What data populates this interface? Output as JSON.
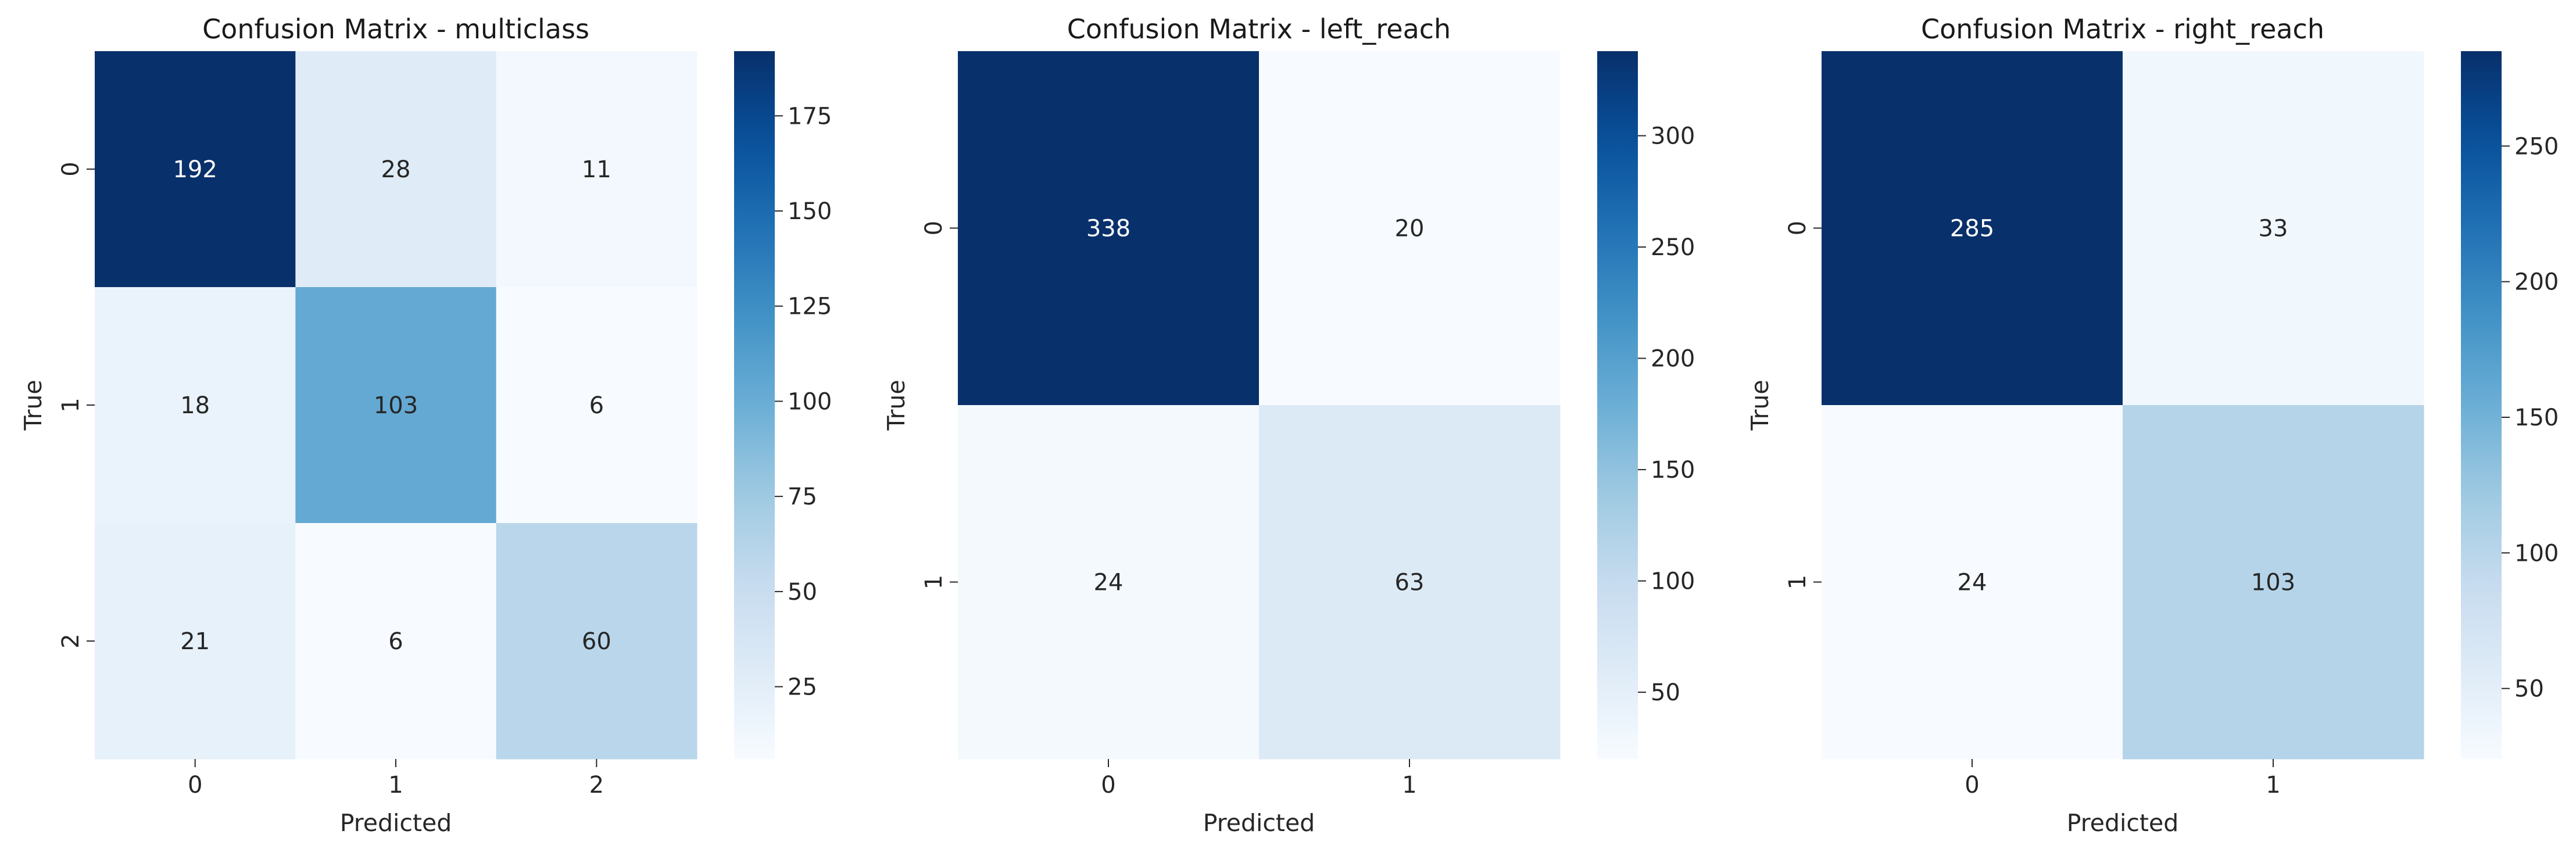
{
  "chart_data": [
    {
      "type": "heatmap",
      "title": "Confusion Matrix - multiclass",
      "xlabel": "Predicted",
      "ylabel": "True",
      "x_categories": [
        "0",
        "1",
        "2"
      ],
      "y_categories": [
        "0",
        "1",
        "2"
      ],
      "values": [
        [
          192,
          28,
          11
        ],
        [
          18,
          103,
          6
        ],
        [
          21,
          6,
          60
        ]
      ],
      "colormap": "Blues",
      "color_range": [
        6,
        192
      ],
      "colorbar_ticks": [
        25,
        50,
        75,
        100,
        125,
        150,
        175
      ]
    },
    {
      "type": "heatmap",
      "title": "Confusion Matrix - left_reach",
      "xlabel": "Predicted",
      "ylabel": "True",
      "x_categories": [
        "0",
        "1"
      ],
      "y_categories": [
        "0",
        "1"
      ],
      "values": [
        [
          338,
          20
        ],
        [
          24,
          63
        ]
      ],
      "colormap": "Blues",
      "color_range": [
        20,
        338
      ],
      "colorbar_ticks": [
        50,
        100,
        150,
        200,
        250,
        300
      ]
    },
    {
      "type": "heatmap",
      "title": "Confusion Matrix - right_reach",
      "xlabel": "Predicted",
      "ylabel": "True",
      "x_categories": [
        "0",
        "1"
      ],
      "y_categories": [
        "0",
        "1"
      ],
      "values": [
        [
          285,
          33
        ],
        [
          24,
          103
        ]
      ],
      "colormap": "Blues",
      "color_range": [
        24,
        285
      ],
      "colorbar_ticks": [
        50,
        100,
        150,
        200,
        250
      ]
    }
  ]
}
